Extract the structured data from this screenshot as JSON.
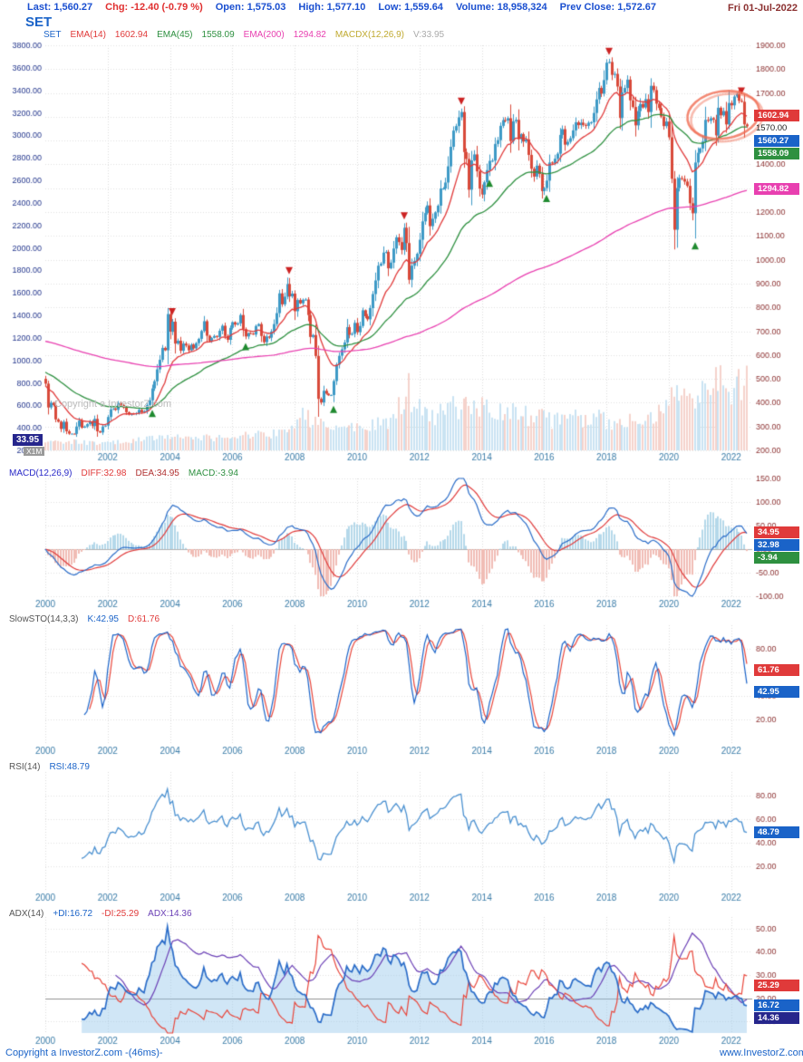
{
  "window": {
    "date": "Fri 01-Jul-2022"
  },
  "title": "SET",
  "watermark": "Copyright a InvestorZ.com",
  "vol_readout": {
    "value": "33.95",
    "scale": "X1M"
  },
  "footer": {
    "left": "Copyright a InvestorZ.com -(46ms)-",
    "right": "www.InvestorZ.com"
  },
  "info_bar": {
    "items": [
      {
        "key": "last",
        "label": "Last:",
        "value": "1,560.27",
        "color": "#1a4fd0"
      },
      {
        "key": "change",
        "label": "Chg:",
        "value": "-12.40 (-0.79 %)",
        "color": "#e03030"
      },
      {
        "key": "open",
        "label": "Open:",
        "value": "1,575.03",
        "color": "#1a4fd0"
      },
      {
        "key": "high",
        "label": "High:",
        "value": "1,577.10",
        "color": "#1a4fd0"
      },
      {
        "key": "low",
        "label": "Low:",
        "value": "1,559.64",
        "color": "#1a4fd0"
      },
      {
        "key": "volume",
        "label": "Volume:",
        "value": "18,958,324",
        "color": "#1a4fd0"
      },
      {
        "key": "prev-close",
        "label": "Prev Close:",
        "value": "1,572.67",
        "color": "#1a4fd0"
      }
    ]
  },
  "legends": {
    "main": [
      {
        "text": "SET",
        "color": "#1a63c8"
      },
      {
        "text": "EMA(14)",
        "color": "#e03a3a"
      },
      {
        "text": "1602.94",
        "color": "#e03a3a"
      },
      {
        "text": "EMA(45)",
        "color": "#2e9040"
      },
      {
        "text": "1558.09",
        "color": "#2e9040"
      },
      {
        "text": "EMA(200)",
        "color": "#e840b0"
      },
      {
        "text": "1294.82",
        "color": "#e840b0"
      },
      {
        "text": "MACDX(12,26,9)",
        "color": "#c0aa30"
      },
      {
        "text": "V:33.95",
        "color": "#aaaaaa"
      }
    ],
    "macd": [
      {
        "text": "MACD(12,26,9)",
        "color": "#2a2ac8"
      },
      {
        "text": "DIFF:32.98",
        "color": "#e03a3a"
      },
      {
        "text": "DEA:34.95",
        "color": "#b03030"
      },
      {
        "text": "MACD:-3.94",
        "color": "#2e9040"
      }
    ],
    "stochastic": [
      {
        "text": "SlowSTO(14,3,3)",
        "color": "#555555"
      },
      {
        "text": "K:42.95",
        "color": "#1a63c8"
      },
      {
        "text": "D:61.76",
        "color": "#e03a3a"
      }
    ],
    "rsi": [
      {
        "text": "RSI(14)",
        "color": "#555555"
      },
      {
        "text": "RSI:48.79",
        "color": "#1a63c8"
      }
    ],
    "adx": [
      {
        "text": "ADX(14)",
        "color": "#555555"
      },
      {
        "text": "+DI:16.72",
        "color": "#1a63c8"
      },
      {
        "text": "-DI:25.29",
        "color": "#e03a3a"
      },
      {
        "text": "ADX:14.36",
        "color": "#6a3fb5"
      }
    ]
  },
  "chart_data": [
    {
      "type": "candlestick",
      "symbol": "SET",
      "interval": "monthly",
      "start_year": 2000,
      "x_tick_years": [
        2002,
        2004,
        2006,
        2008,
        2010,
        2012,
        2014,
        2016,
        2018,
        2020,
        2022
      ],
      "price_axis": {
        "side": "right",
        "min": 200,
        "max": 1900,
        "step": 100
      },
      "volume_axis": {
        "side": "left",
        "min": 200,
        "max": 3800,
        "step": 200,
        "unit": "x1M"
      },
      "first_open": 500,
      "close": [
        480,
        380,
        400,
        390,
        330,
        320,
        290,
        320,
        280,
        270,
        270,
        269,
        300,
        325,
        295,
        300,
        310,
        322,
        302,
        332,
        280,
        275,
        300,
        304,
        340,
        372,
        376,
        370,
        398,
        390,
        380,
        360,
        350,
        355,
        352,
        356,
        370,
        360,
        365,
        390,
        410,
        460,
        490,
        540,
        580,
        630,
        620,
        772,
        698,
        740,
        648,
        660,
        618,
        648,
        640,
        620,
        644,
        628,
        650,
        668,
        701,
        742,
        681,
        658,
        672,
        680,
        676,
        702,
        723,
        680,
        664,
        714,
        738,
        728,
        733,
        768,
        709,
        678,
        692,
        690,
        686,
        722,
        730,
        680,
        654,
        678,
        673,
        699,
        730,
        776,
        859,
        813,
        845,
        898,
        846,
        858,
        784,
        831,
        817,
        832,
        833,
        768,
        676,
        684,
        596,
        416,
        401,
        450,
        438,
        431,
        432,
        491,
        560,
        597,
        624,
        653,
        717,
        685,
        689,
        735,
        696,
        722,
        788,
        763,
        750,
        797,
        856,
        913,
        975,
        984,
        1030,
        1033,
        964,
        988,
        1047,
        1094,
        1074,
        1041,
        1134,
        1070,
        916,
        975,
        995,
        1025,
        1084,
        1161,
        1196,
        1228,
        1141,
        1172,
        1199,
        1227,
        1299,
        1299,
        1324,
        1392,
        1474,
        1542,
        1561,
        1598,
        1620,
        1452,
        1423,
        1294,
        1417,
        1442,
        1371,
        1299,
        1274,
        1325,
        1376,
        1415,
        1416,
        1486,
        1502,
        1562,
        1586,
        1584,
        1594,
        1498,
        1581,
        1587,
        1506,
        1527,
        1496,
        1505,
        1440,
        1382,
        1349,
        1395,
        1360,
        1288,
        1301,
        1332,
        1408,
        1405,
        1424,
        1445,
        1524,
        1548,
        1483,
        1495,
        1510,
        1543,
        1577,
        1565,
        1575,
        1566,
        1562,
        1575,
        1577,
        1616,
        1673,
        1721,
        1697,
        1754,
        1827,
        1830,
        1776,
        1780,
        1727,
        1595,
        1702,
        1721,
        1756,
        1669,
        1641,
        1564,
        1624,
        1654,
        1639,
        1674,
        1620,
        1730,
        1712,
        1655,
        1637,
        1601,
        1561,
        1580,
        1514,
        1340,
        1126,
        1301,
        1343,
        1339,
        1328,
        1310,
        1237,
        1195,
        1408,
        1449,
        1467,
        1496,
        1587,
        1583,
        1594,
        1588,
        1522,
        1638,
        1606,
        1624,
        1568,
        1658,
        1648,
        1685,
        1695,
        1667,
        1663,
        1568,
        1560.27
      ],
      "volume_keyframes": [
        [
          0,
          300
        ],
        [
          24,
          270
        ],
        [
          48,
          340
        ],
        [
          72,
          330
        ],
        [
          90,
          380
        ],
        [
          100,
          560
        ],
        [
          108,
          420
        ],
        [
          120,
          430
        ],
        [
          132,
          470
        ],
        [
          140,
          800
        ],
        [
          148,
          500
        ],
        [
          156,
          620
        ],
        [
          164,
          700
        ],
        [
          172,
          560
        ],
        [
          184,
          570
        ],
        [
          196,
          500
        ],
        [
          208,
          530
        ],
        [
          220,
          500
        ],
        [
          232,
          530
        ],
        [
          238,
          660
        ],
        [
          242,
          700
        ],
        [
          248,
          760
        ],
        [
          252,
          780
        ],
        [
          256,
          850
        ],
        [
          260,
          900
        ],
        [
          264,
          780
        ],
        [
          267,
          860
        ],
        [
          270,
          950
        ]
      ],
      "candle_up_color": "#3e9ac6",
      "candle_down_color": "#d8493a",
      "volume_up_color": "#c9e3f2",
      "volume_down_color": "#f5d2cb",
      "emas": [
        {
          "period": 14,
          "seed": 470,
          "color": "#e03a3a",
          "last_value": "1602.94"
        },
        {
          "period": 45,
          "seed": 530,
          "color": "#2e9040",
          "last_value": "1558.09"
        },
        {
          "period": 200,
          "seed": 660,
          "color": "#e840b0",
          "last_value": "1294.82"
        }
      ],
      "signals": {
        "sell_month_indices": [
          49,
          94,
          138,
          160,
          217,
          268
        ],
        "buy_month_indices": [
          41,
          77,
          111,
          171,
          193,
          250
        ],
        "sell_color": "#cc2222",
        "buy_color": "#1f8a2f"
      },
      "price_tags": [
        {
          "text": "1602.94",
          "value": 1602.94,
          "bg": "#e03a3a"
        },
        {
          "text": "1570.00",
          "value": 1570,
          "bg": ""
        },
        {
          "text": "1560.27",
          "value": 1560.27,
          "bg": "#1a63c8"
        },
        {
          "text": "1558.09",
          "value": 1558.09,
          "bg": "#2e9040"
        },
        {
          "text": "1294.82",
          "value": 1294.82,
          "bg": "#e840b0"
        }
      ],
      "annotation_ellipse": {
        "x_year": 2021.75,
        "price": 1608,
        "rx": 40,
        "ry": 26,
        "rotation": -0.15,
        "color": "#f06a50"
      }
    },
    {
      "type": "macd",
      "params": [
        12,
        26,
        9
      ],
      "derived_from": "close",
      "ylim": [
        -100,
        150
      ],
      "yticks": [
        150,
        100,
        50,
        0,
        -50,
        -100
      ],
      "x_tick_years": [
        2000,
        2002,
        2004,
        2006,
        2008,
        2010,
        2012,
        2014,
        2016,
        2018,
        2020,
        2022
      ],
      "readout": {
        "diff": 32.98,
        "dea": 34.95,
        "macd": -3.94
      },
      "colors": {
        "diff": "#2a6cc8",
        "dea": "#e03a3a",
        "hist_pos": "#b4d8ea",
        "hist_neg": "#f0bcb4"
      },
      "tags": [
        {
          "text": "34.95",
          "value": 34.95,
          "bg": "#e03a3a"
        },
        {
          "text": "32.98",
          "value": 32.98,
          "bg": "#1a63c8"
        },
        {
          "text": "-3.94",
          "value": -3.94,
          "bg": "#2e9040"
        }
      ]
    },
    {
      "type": "stochastic",
      "params": [
        14,
        3,
        3
      ],
      "ylim": [
        0,
        100
      ],
      "yticks": [
        80,
        60,
        40,
        20
      ],
      "guides": [
        20,
        80
      ],
      "x_tick_years": [
        2000,
        2002,
        2004,
        2006,
        2008,
        2010,
        2012,
        2014,
        2016,
        2018,
        2020,
        2022
      ],
      "readout": {
        "k": 42.95,
        "d": 61.76
      },
      "colors": {
        "k": "#1a63c8",
        "d": "#e8453a"
      },
      "tags": [
        {
          "text": "61.76",
          "value": 61.76,
          "bg": "#e03a3a"
        },
        {
          "text": "42.95",
          "value": 42.95,
          "bg": "#1a63c8"
        }
      ]
    },
    {
      "type": "rsi",
      "period": 14,
      "ylim": [
        0,
        100
      ],
      "yticks": [
        80,
        60,
        40,
        20
      ],
      "x_tick_years": [
        2000,
        2002,
        2004,
        2006,
        2008,
        2010,
        2012,
        2014,
        2016,
        2018,
        2020,
        2022
      ],
      "readout": {
        "rsi": 48.79
      },
      "color": "#4a90d0",
      "tags": [
        {
          "text": "48.79",
          "value": 48.79,
          "bg": "#1a63c8"
        }
      ]
    },
    {
      "type": "adx",
      "period": 14,
      "ylim": [
        5,
        55
      ],
      "yticks": [
        50,
        40,
        30,
        20,
        10
      ],
      "hline": 20,
      "x_tick_years": [
        2000,
        2002,
        2004,
        2006,
        2008,
        2010,
        2012,
        2014,
        2016,
        2018,
        2020,
        2022
      ],
      "readout": {
        "plus_di": 16.72,
        "minus_di": 25.29,
        "adx": 14.36
      },
      "colors": {
        "plus_di": "#2a6cc8",
        "minus_di": "#e8453a",
        "adx": "#6a3fb5",
        "fill": "rgba(150,200,235,0.45)"
      },
      "tags": [
        {
          "text": "25.29",
          "value": 25.29,
          "bg": "#e03a3a"
        },
        {
          "text": "16.72",
          "value": 16.72,
          "bg": "#1a63c8"
        },
        {
          "text": "14.36",
          "value": 14.36,
          "bg": "#26268c"
        }
      ]
    }
  ]
}
